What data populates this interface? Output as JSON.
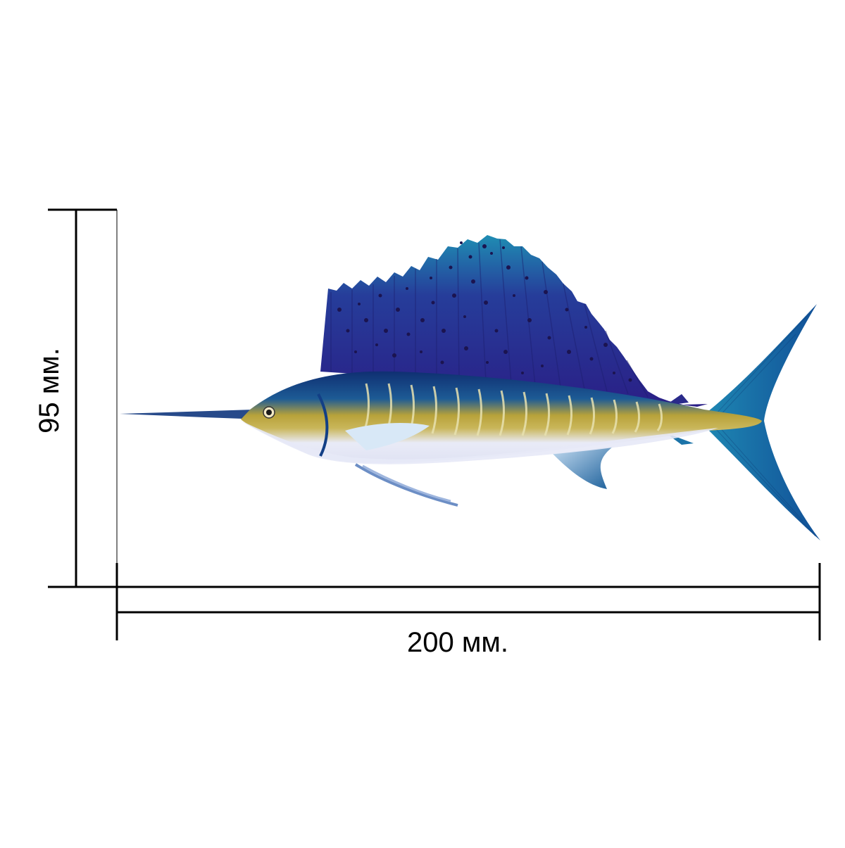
{
  "dimensions": {
    "width_label": "200 мм.",
    "height_label": "95 мм."
  },
  "illustration": {
    "subject": "sailfish-icon"
  },
  "colors": {
    "line": "#000000",
    "sail_dark": "#2a1f86",
    "sail_light": "#1d89b0",
    "back_blue": "#123f86",
    "body_gold": "#b8a23a",
    "belly": "#e7e9f7",
    "fin_blue": "#1b73a8",
    "spots": "#1b1450"
  }
}
